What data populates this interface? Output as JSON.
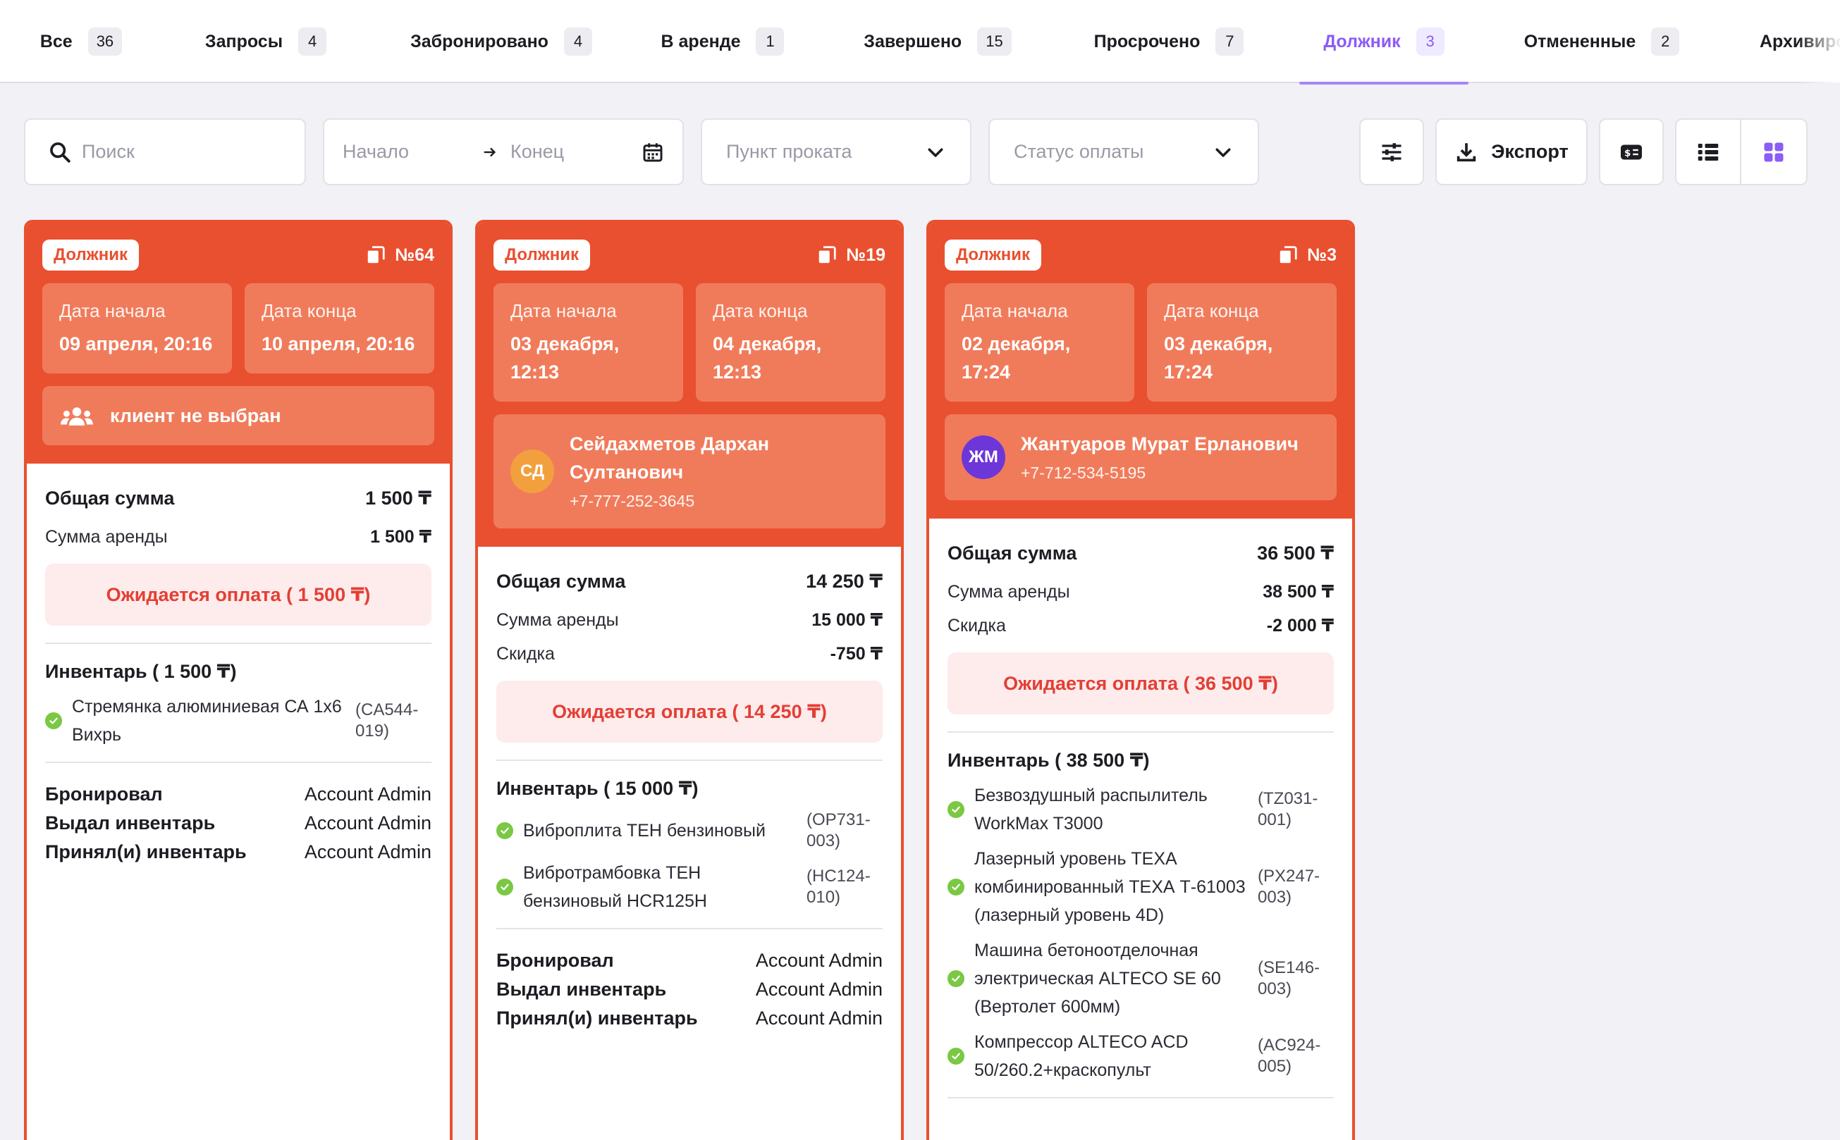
{
  "tabs": [
    {
      "label": "Все",
      "count": "36"
    },
    {
      "label": "Запросы",
      "count": "4"
    },
    {
      "label": "Забронировано",
      "count": "4"
    },
    {
      "label": "В аренде",
      "count": "1"
    },
    {
      "label": "Завершено",
      "count": "15"
    },
    {
      "label": "Просрочено",
      "count": "7"
    },
    {
      "label": "Должник",
      "count": "3"
    },
    {
      "label": "Отмененные",
      "count": "2"
    },
    {
      "label": "Архивиро",
      "count": ""
    }
  ],
  "filters": {
    "search_placeholder": "Поиск",
    "start_placeholder": "Начало",
    "end_placeholder": "Конец",
    "location_placeholder": "Пункт проката",
    "payment_status_placeholder": "Статус оплаты",
    "export_label": "Экспорт"
  },
  "colors": {
    "accent": "#8b5cf6",
    "card": "#e9502f",
    "card_light": "#f07b5b",
    "pay_text": "#e43e35"
  },
  "labels": {
    "start_date": "Дата начала",
    "end_date": "Дата конца",
    "total": "Общая сумма",
    "rent_sum": "Сумма аренды",
    "discount": "Скидка",
    "booked_by": "Бронировал",
    "issued_by": "Выдал инвентарь",
    "received_by": "Принял(и) инвентарь"
  },
  "cards": [
    {
      "badge": "Должник",
      "number": "№64",
      "start_date": "09 апреля, 20:16",
      "end_date": "10 апреля, 20:16",
      "client_none": "клиент не выбран",
      "total": "1 500 ₸",
      "rent_sum": "1 500 ₸",
      "payment": "Ожидается оплата ( 1 500 ₸)",
      "inventory_title": "Инвентарь ( 1 500 ₸)",
      "items": [
        {
          "name": "Стремянка алюминиевая СА 1х6 Вихрь",
          "code": "(CA544-019)"
        }
      ],
      "booked_by": "Account Admin",
      "issued_by": "Account Admin",
      "received_by": "Account Admin"
    },
    {
      "badge": "Должник",
      "number": "№19",
      "start_date": "03 декабря, 12:13",
      "end_date": "04 декабря, 12:13",
      "client": {
        "initials": "СД",
        "name": "Сейдахметов Дархан Султанович",
        "phone": "+7-777-252-3645",
        "avatar_color": "#f2a03d"
      },
      "total": "14 250 ₸",
      "rent_sum": "15 000 ₸",
      "discount": "-750 ₸",
      "payment": "Ожидается оплата ( 14 250 ₸)",
      "inventory_title": "Инвентарь ( 15 000 ₸)",
      "items": [
        {
          "name": "Виброплита ТЕН бензиновый",
          "code": "(OP731-003)"
        },
        {
          "name": "Вибротрамбовка ТЕН бензиновый HCR125H",
          "code": "(HC124-010)"
        }
      ],
      "booked_by": "Account Admin",
      "issued_by": "Account Admin",
      "received_by": "Account Admin"
    },
    {
      "badge": "Должник",
      "number": "№3",
      "start_date": "02 декабря, 17:24",
      "end_date": "03 декабря, 17:24",
      "client": {
        "initials": "ЖМ",
        "name": "Жантуаров Мурат Ерланович",
        "phone": "+7-712-534-5195",
        "avatar_color": "#6d36d8"
      },
      "total": "36 500 ₸",
      "rent_sum": "38 500 ₸",
      "discount": "-2 000 ₸",
      "payment": "Ожидается оплата ( 36 500 ₸)",
      "inventory_title": "Инвентарь ( 38 500 ₸)",
      "items": [
        {
          "name": "Безвоздушный распылитель WorkMax T3000",
          "code": "(TZ031-001)"
        },
        {
          "name": "Лазерный уровень ТЕХА комбинированный ТЕХА Т-61003 (лазерный уровень 4D)",
          "code": "(PX247-003)"
        },
        {
          "name": "Машина бетоноотделочная электрическая ALTECO SE 60 (Вертолет 600мм)",
          "code": "(SE146-003)"
        },
        {
          "name": "Компрессор ALTECO ACD 50/260.2+краскопульт",
          "code": "(AC924-005)"
        }
      ]
    }
  ]
}
